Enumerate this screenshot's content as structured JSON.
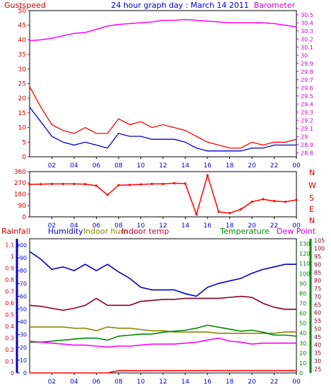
{
  "header": {
    "left_label": "Gustspeed",
    "title": "24 hour graph day : March 14 2011",
    "right_label": "Barometer"
  },
  "colors": {
    "gust": "#ff0000",
    "wind_avg": "#0000cc",
    "barometer": "#ff00ff",
    "wind_dir": "#ff0000",
    "rainfall": "#ff0000",
    "humidity": "#0000cc",
    "indoor_hum": "#888800",
    "indoor_temp": "#880022",
    "temperature": "#008800",
    "dew_point": "#ff00ff",
    "grid": "#000000",
    "text_red": "#cc0000",
    "text_blue": "#0000cc",
    "text_magenta": "#cc00cc",
    "text_green": "#008800",
    "text_olive": "#888800",
    "text_indoor": "#cc0033",
    "yellow": "#ffff00"
  },
  "x_ticks": [
    "02",
    "04",
    "06",
    "08",
    "10",
    "12",
    "14",
    "16",
    "18",
    "20",
    "22",
    "00"
  ],
  "chart_data": [
    {
      "type": "line",
      "title": "24 hour graph day : March 14 2011",
      "x": [
        0,
        1,
        2,
        3,
        4,
        5,
        6,
        7,
        8,
        9,
        10,
        11,
        12,
        13,
        14,
        15,
        16,
        17,
        18,
        19,
        20,
        21,
        22,
        23,
        24
      ],
      "left_axis": {
        "label": "Gustspeed",
        "ticks": [
          0,
          5,
          10,
          15,
          20,
          25,
          30,
          35,
          40,
          45,
          50
        ],
        "ylim": [
          0,
          50
        ]
      },
      "right_axis": {
        "label": "Barometer",
        "ticks": [
          "28.8",
          "28.9",
          "29",
          "29.1",
          "29.2",
          "29.3",
          "29.4",
          "29.5",
          "29.6",
          "29.7",
          "29.8",
          "29.9",
          "30",
          "30.1",
          "30.2",
          "30.3",
          "30.4",
          "30.5"
        ],
        "ylim": [
          28.75,
          30.55
        ]
      },
      "series": [
        {
          "name": "Gustspeed",
          "axis": "left",
          "values": [
            24,
            17,
            11,
            9,
            8,
            10,
            8,
            8,
            13,
            11,
            12,
            10,
            11,
            10,
            9,
            7,
            5,
            4,
            3,
            3,
            5,
            4,
            5,
            5,
            6
          ]
        },
        {
          "name": "",
          "axis": "left",
          "values": [
            17,
            12,
            7,
            5,
            4,
            5,
            4,
            3,
            8,
            7,
            7,
            6,
            6,
            6,
            5,
            3,
            2,
            2,
            2,
            2,
            3,
            3,
            4,
            4,
            4
          ]
        },
        {
          "name": "Barometer",
          "axis": "right",
          "values": [
            30.18,
            30.19,
            30.21,
            30.24,
            30.27,
            30.28,
            30.32,
            30.36,
            30.38,
            30.39,
            30.4,
            30.41,
            30.43,
            30.43,
            30.44,
            30.43,
            30.42,
            30.41,
            30.4,
            30.4,
            30.4,
            30.4,
            30.39,
            30.37,
            30.35
          ]
        }
      ]
    },
    {
      "type": "line",
      "left_axis": {
        "ticks": [
          0,
          90,
          180,
          270,
          360
        ],
        "ylim": [
          0,
          360
        ]
      },
      "direction_labels": [
        "N",
        "W",
        "S",
        "E",
        "N"
      ],
      "series": [
        {
          "name": "",
          "values": [
            258,
            260,
            262,
            262,
            262,
            260,
            248,
            175,
            252,
            255,
            258,
            262,
            262,
            268,
            265,
            20,
            330,
            40,
            30,
            60,
            120,
            140,
            125,
            120,
            135
          ]
        }
      ]
    },
    {
      "type": "line",
      "legend": [
        "Rainfall",
        "Humidity",
        "Indoor hum",
        "Indoor temp",
        "Temperature",
        "Dew Point"
      ],
      "axis_rain": {
        "label": "Rainfall",
        "ticks": [
          "0",
          "0.1",
          "0.2",
          "0.3",
          "0.4",
          "0.5",
          "0.6",
          "0.7",
          "0.8",
          "0.9",
          "1",
          "1.1"
        ],
        "ylim": [
          0,
          1.15
        ]
      },
      "axis_humidity": {
        "ticks": [
          0,
          10,
          20,
          30,
          40,
          50,
          60,
          70,
          80,
          90,
          100
        ],
        "ylim": [
          0,
          105
        ]
      },
      "axis_temperature": {
        "ticks": [
          0,
          10,
          20,
          30,
          40,
          50,
          60,
          70,
          80,
          90,
          100,
          110,
          120,
          130
        ],
        "ylim": [
          0,
          135
        ]
      },
      "axis_dew": {
        "ticks": [
          25,
          30,
          35,
          40,
          45,
          50,
          55,
          60,
          65,
          70,
          75,
          80,
          85,
          90,
          95,
          100,
          105
        ],
        "ylim": [
          22.5,
          106
        ]
      },
      "series": [
        {
          "name": "Humidity",
          "values": [
            95,
            89,
            81,
            83,
            80,
            85,
            80,
            85,
            79,
            74,
            67,
            65,
            65,
            65,
            62,
            60,
            67,
            70,
            72,
            74,
            78,
            81,
            83,
            85,
            85
          ]
        },
        {
          "name": "Indoor hum",
          "values": [
            36,
            36,
            36,
            36,
            35,
            35,
            33,
            36,
            35,
            35,
            34,
            33,
            33,
            32,
            32,
            32,
            32,
            31,
            31,
            31,
            31,
            31,
            31,
            32,
            32
          ]
        },
        {
          "name": "Indoor temp",
          "values": [
            68,
            67,
            65,
            63,
            65,
            68,
            75,
            68,
            68,
            68,
            72,
            73,
            74,
            74,
            75,
            75,
            75,
            75,
            76,
            77,
            76,
            70,
            66,
            64,
            64
          ]
        },
        {
          "name": "Temperature",
          "values": [
            31,
            31,
            32,
            33,
            34,
            35,
            35,
            33,
            37,
            38,
            39,
            39,
            41,
            42,
            43,
            45,
            48,
            46,
            44,
            42,
            43,
            41,
            38,
            38,
            37
          ]
        },
        {
          "name": "Dew Point",
          "values": [
            32,
            31,
            30,
            29,
            28,
            28,
            27,
            26,
            27,
            27,
            28,
            29,
            29,
            29,
            30,
            31,
            33,
            35,
            32,
            31,
            29,
            30,
            30,
            30,
            30
          ]
        },
        {
          "name": "Rainfall",
          "values": [
            0,
            0,
            0,
            0,
            0,
            0,
            0,
            0,
            0.02,
            0.02,
            0.02,
            0.02,
            0.02,
            0.02,
            0.02,
            0.02,
            0.02,
            0.02,
            0.02,
            0.02,
            0.02,
            0.02,
            0.02,
            0.02,
            0.02
          ]
        }
      ]
    }
  ]
}
